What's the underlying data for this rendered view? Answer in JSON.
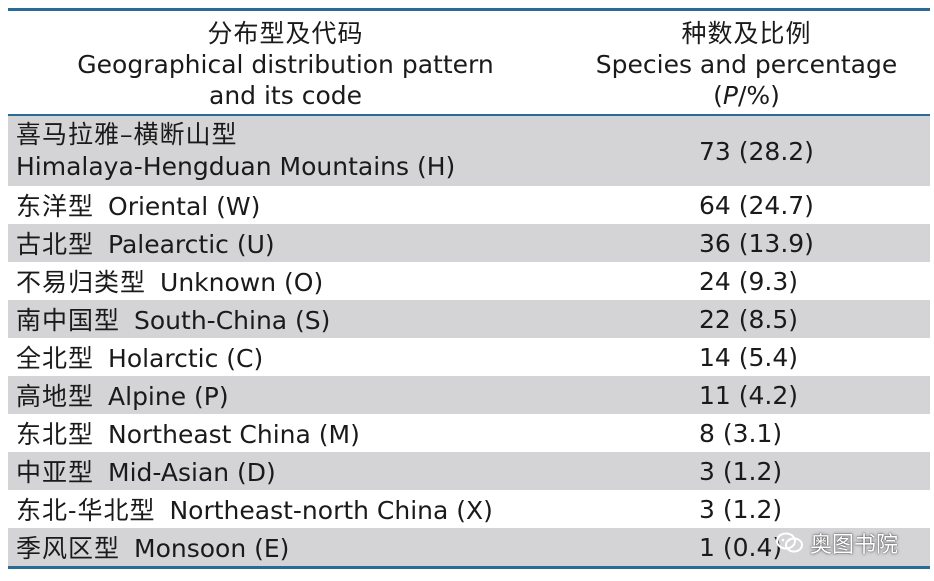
{
  "header": {
    "col1_zh": "分布型及代码",
    "col1_en_line1": "Geographical distribution pattern",
    "col1_en_line2": "and its code",
    "col2_zh": "种数及比例",
    "col2_en_line1": "Species and percentage",
    "col2_en_open": "(",
    "col2_en_italic": "P",
    "col2_en_close": "/%)"
  },
  "rows": [
    {
      "zh": "喜马拉雅–横断山型",
      "en": "Himalaya-Hengduan Mountains (H)",
      "value": "73 (28.2)"
    },
    {
      "zh": "东洋型",
      "en": "Oriental (W)",
      "value": "64 (24.7)"
    },
    {
      "zh": "古北型",
      "en": "Palearctic (U)",
      "value": "36 (13.9)"
    },
    {
      "zh": "不易归类型",
      "en": "Unknown (O)",
      "value": "24 (9.3)"
    },
    {
      "zh": "南中国型",
      "en": "South-China (S)",
      "value": "22 (8.5)"
    },
    {
      "zh": "全北型",
      "en": "Holarctic (C)",
      "value": "14 (5.4)"
    },
    {
      "zh": "高地型",
      "en": "Alpine (P)",
      "value": "11 (4.2)"
    },
    {
      "zh": "东北型",
      "en": "Northeast China (M)",
      "value": "8 (3.1)"
    },
    {
      "zh": "中亚型",
      "en": "Mid-Asian (D)",
      "value": "3 (1.2)"
    },
    {
      "zh": "东北-华北型",
      "en": "Northeast-north China (X)",
      "value": "3 (1.2)"
    },
    {
      "zh": "季风区型",
      "en": "Monsoon (E)",
      "value": "1 (0.4)"
    }
  ],
  "watermark": {
    "icon": "wechat-icon",
    "text": "奥图书院"
  },
  "colors": {
    "rule": "#2a6a96",
    "shade": "#d4d4d6"
  }
}
